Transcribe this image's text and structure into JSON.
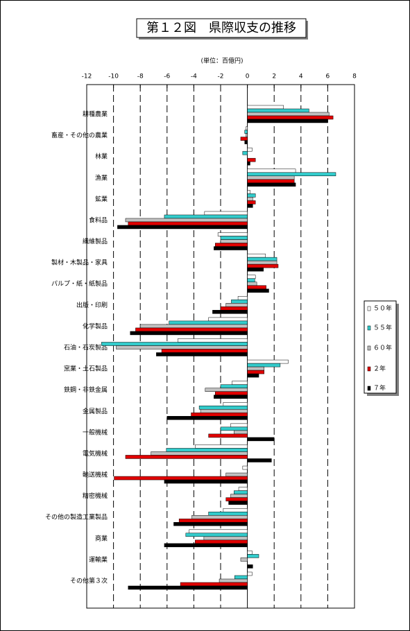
{
  "chart_data": {
    "type": "hbar",
    "title": "第１２図　県際収支の推移",
    "subtitle": "(単位：百億円)",
    "categories": [
      "耕種農業",
      "畜産・その他の農業",
      "林業",
      "漁業",
      "鉱業",
      "食料品",
      "繊維製品",
      "製材・木製品・家具",
      "パルプ・紙・紙製品",
      "出版・印刷",
      "化学製品",
      "石油・石炭製品",
      "窯業・土石製品",
      "鉄鋼・非鉄金属",
      "金属製品",
      "一般機械",
      "電気機械",
      "輸送機械",
      "精密機械",
      "その他の製造工業製品",
      "商業",
      "運輸業",
      "その他第３次"
    ],
    "series": [
      {
        "name": "５０年",
        "color": "#ffffff",
        "values": [
          2.7,
          -0.1,
          0.35,
          3.6,
          0.2,
          -3.2,
          -2.2,
          1.35,
          0.6,
          -0.7,
          -2.9,
          -5.2,
          3.05,
          -1.15,
          -1.8,
          -1.25,
          -3.9,
          -0.35,
          -0.65,
          -1.8,
          -4.35,
          0.35,
          0.35
        ]
      },
      {
        "name": "５５年",
        "color": "#33cccc",
        "values": [
          4.6,
          -0.2,
          -0.35,
          6.6,
          0.6,
          -6.2,
          -2.0,
          2.2,
          0.55,
          -1.2,
          -5.85,
          -10.9,
          2.45,
          -2.0,
          -3.6,
          -2.0,
          -6.05,
          0,
          -1.0,
          -2.9,
          -4.6,
          0.85,
          -0.95
        ]
      },
      {
        "name": "６０年",
        "color": "#c0c0c0",
        "values": [
          6.1,
          -0.1,
          0,
          3.5,
          0.4,
          -9.1,
          -2.0,
          2.2,
          0.7,
          -1.6,
          -8.0,
          -9.8,
          1.25,
          -3.15,
          -3.5,
          -1.0,
          -7.2,
          -1.6,
          -1.25,
          -4.15,
          -3.25,
          -0.5,
          -2.1
        ]
      },
      {
        "name": "２年",
        "color": "#e00000",
        "values": [
          6.4,
          -0.5,
          0.6,
          3.5,
          0.6,
          -8.9,
          -2.4,
          2.3,
          1.4,
          -2.0,
          -8.35,
          -6.4,
          1.25,
          -2.4,
          -4.2,
          -2.9,
          -9.1,
          -9.95,
          -1.6,
          -5.1,
          -3.9,
          0,
          -5.0
        ]
      },
      {
        "name": "７年",
        "color": "#000000",
        "values": [
          6.0,
          -0.2,
          0.2,
          3.6,
          0.4,
          -9.7,
          -2.5,
          1.2,
          1.6,
          -2.6,
          -8.75,
          -6.8,
          0.85,
          -2.5,
          -6.0,
          2.0,
          1.8,
          -6.2,
          -1.4,
          -5.5,
          -6.2,
          0.4,
          -8.9
        ]
      }
    ],
    "xlim": [
      -12,
      8
    ],
    "xticks": [
      -12,
      -10,
      -8,
      -6,
      -4,
      -2,
      0,
      2,
      4,
      6,
      8
    ],
    "grid": true,
    "legend": "right"
  }
}
